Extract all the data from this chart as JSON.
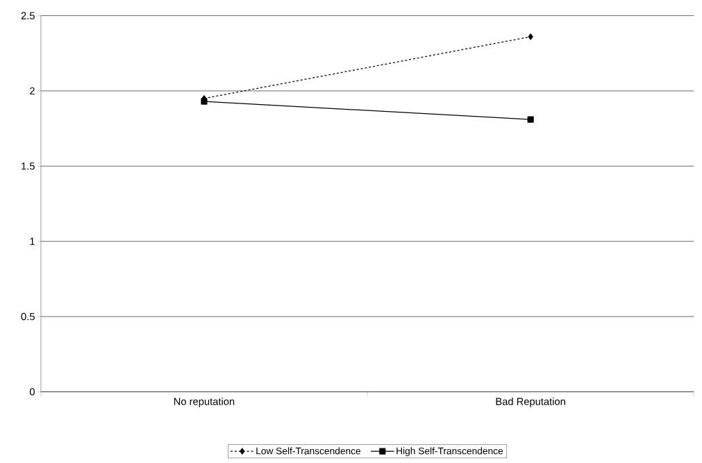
{
  "chart_data": {
    "type": "line",
    "categories": [
      "No reputation",
      "Bad Reputation"
    ],
    "series": [
      {
        "name": "Low Self-Transcendence",
        "color": "#000000",
        "values": [
          1.95,
          2.36
        ],
        "marker": "diamond",
        "line_style": "dashed"
      },
      {
        "name": "High Self-Transcendence",
        "color": "#000000",
        "values": [
          1.93,
          1.81
        ],
        "marker": "square",
        "line_style": "solid"
      }
    ],
    "ylim": [
      0,
      2.5
    ],
    "yticks": [
      0,
      0.5,
      1,
      1.5,
      2,
      2.5
    ],
    "grid": "y",
    "legend": "bottom"
  }
}
